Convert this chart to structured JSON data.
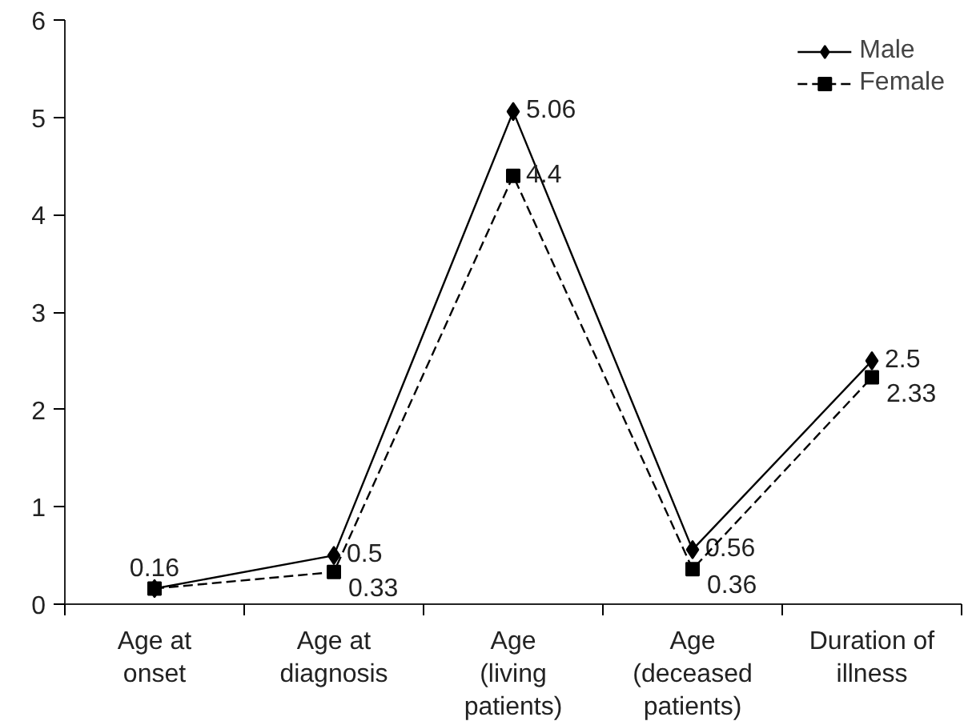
{
  "chart_data": {
    "type": "line",
    "categories": [
      "Age at onset",
      "Age at diagnosis",
      "Age (living patients)",
      "Age (deceased patients)",
      "Duration of illness"
    ],
    "series": [
      {
        "name": "Male",
        "color": "#000000",
        "marker": "diamond",
        "line_style": "solid",
        "values": [
          0.16,
          0.5,
          5.06,
          0.56,
          2.5
        ],
        "value_labels": [
          "0.16",
          "0.5",
          "5.06",
          "0.56",
          "2.5"
        ]
      },
      {
        "name": "Female",
        "color": "#000000",
        "marker": "square",
        "line_style": "dashed",
        "values": [
          0.16,
          0.33,
          4.4,
          0.36,
          2.33
        ],
        "value_labels": [
          null,
          "0.33",
          "4.4",
          "0.36",
          "2.33"
        ]
      }
    ],
    "ylim": [
      0,
      6
    ],
    "yticks": [
      0,
      1,
      2,
      3,
      4,
      5,
      6
    ],
    "grid": false,
    "legend": "top right"
  }
}
